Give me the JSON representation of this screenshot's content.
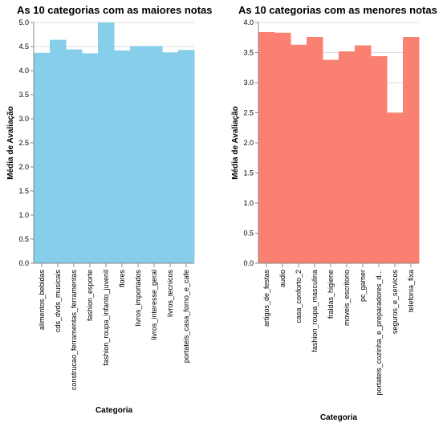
{
  "chart_data": [
    {
      "type": "bar",
      "title": "As 10 categorias com as maiores notas",
      "xlabel": "Categoria",
      "ylabel": "Média de Avaliação",
      "ylim": [
        0,
        5
      ],
      "yticks": [
        0,
        0.5,
        1,
        1.5,
        2,
        2.5,
        3,
        3.5,
        4,
        4.5,
        5
      ],
      "grid": true,
      "color": "#87ceeb",
      "categories": [
        "alimentos_bebidas",
        "cds_dvds_musicais",
        "construcao_ferramentas_ferramentas",
        "fashion_esporte",
        "fashion_roupa_infanto_juvenil",
        "flores",
        "livros_importados",
        "livros_interesse_geral",
        "livros_tecnicos",
        "portateis_casa_forno_e_cafe"
      ],
      "values": [
        4.37,
        4.64,
        4.44,
        4.36,
        5.0,
        4.42,
        4.51,
        4.51,
        4.38,
        4.43
      ]
    },
    {
      "type": "bar",
      "title": "As 10 categorias com as menores notas",
      "xlabel": "Categoria",
      "ylabel": "Média de Avaliação",
      "ylim": [
        0,
        4
      ],
      "yticks": [
        0,
        0.5,
        1,
        1.5,
        2,
        2.5,
        3,
        3.5,
        4
      ],
      "grid": true,
      "color": "#fa8072",
      "categories": [
        "artigos_de_festas",
        "audio",
        "casa_conforto_2",
        "fashion_roupa_masculina",
        "fraldas_higiene",
        "moveis_escritorio",
        "pc_gamer",
        "portateis_cozinha_e_preparadores_d...",
        "seguros_e_servicos",
        "telefonia_fixa"
      ],
      "values": [
        3.84,
        3.83,
        3.63,
        3.76,
        3.38,
        3.52,
        3.62,
        3.44,
        2.5,
        3.76
      ]
    }
  ]
}
